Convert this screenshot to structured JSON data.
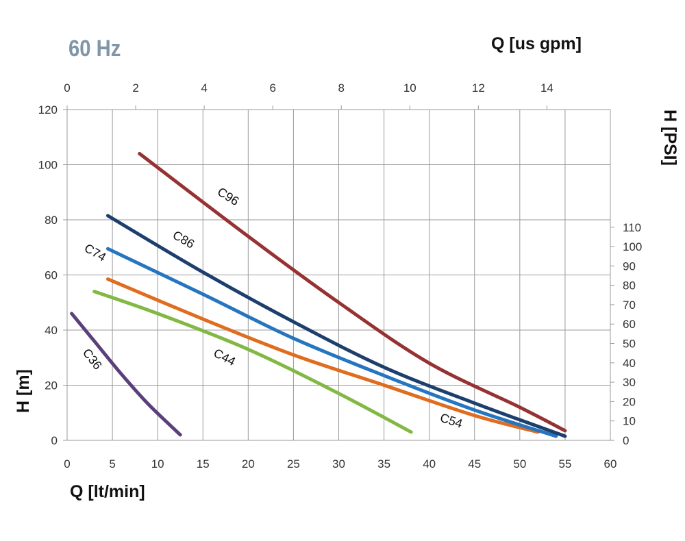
{
  "frequency_label": "60 Hz",
  "colors": {
    "C36": "#5b3f7c",
    "C44": "#82b843",
    "C54": "#e06c1f",
    "C74": "#2575c0",
    "C86": "#1d3f6e",
    "C96": "#963234",
    "grid": "#999999"
  },
  "chart_data": {
    "type": "line",
    "xlabel": "Q [lt/min]",
    "ylabel": "H [m]",
    "x2label": "Q [us gpm]",
    "y2label": "H [PSI]",
    "xlim": [
      0,
      60
    ],
    "ylim": [
      0,
      120
    ],
    "x2lim": [
      0,
      15.85
    ],
    "y2lim": [
      0,
      170.7
    ],
    "x_ticks": [
      "0",
      "5",
      "10",
      "15",
      "20",
      "25",
      "30",
      "35",
      "40",
      "45",
      "50",
      "55",
      "60"
    ],
    "y_ticks": [
      "0",
      "20",
      "40",
      "60",
      "80",
      "100",
      "120"
    ],
    "x2_ticks": [
      "0",
      "2",
      "4",
      "6",
      "8",
      "10",
      "12",
      "14"
    ],
    "y2_ticks": [
      "0",
      "10",
      "20",
      "30",
      "40",
      "50",
      "60",
      "70",
      "80",
      "90",
      "100",
      "110"
    ],
    "grid": true,
    "series": [
      {
        "name": "C36",
        "x": [
          0.5,
          3,
          6,
          9,
          12.5
        ],
        "y": [
          46,
          36,
          24,
          13,
          2
        ]
      },
      {
        "name": "C44",
        "x": [
          3,
          10,
          20,
          30,
          38
        ],
        "y": [
          54,
          46,
          33,
          17,
          3
        ]
      },
      {
        "name": "C54",
        "x": [
          4.5,
          15,
          25,
          35,
          45,
          52
        ],
        "y": [
          58.5,
          44,
          31,
          20,
          9,
          3
        ]
      },
      {
        "name": "C74",
        "x": [
          4.5,
          15,
          25,
          35,
          45,
          54
        ],
        "y": [
          69.5,
          53,
          37,
          23.5,
          11,
          1.5
        ]
      },
      {
        "name": "C86",
        "x": [
          4.5,
          15,
          25,
          35,
          45,
          55
        ],
        "y": [
          81.5,
          61,
          43,
          26.5,
          13.5,
          1.5
        ]
      },
      {
        "name": "C96",
        "x": [
          8,
          20,
          30,
          40,
          50,
          55
        ],
        "y": [
          104,
          74,
          50,
          28,
          12,
          3.5
        ]
      }
    ],
    "annotations": [
      "C36",
      "C44",
      "C54",
      "C74",
      "C86",
      "C96"
    ]
  }
}
